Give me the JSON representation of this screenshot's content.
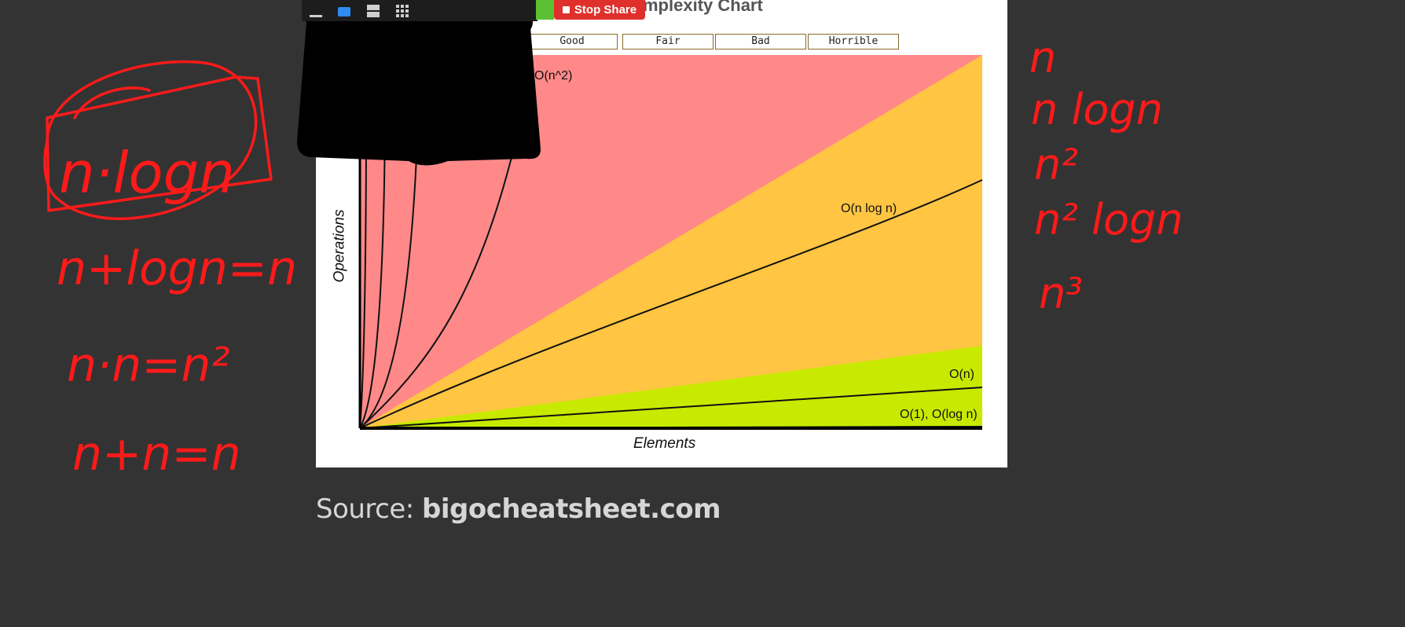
{
  "chart_title_fragment": "mplexity Chart",
  "legend": [
    {
      "label": "Good",
      "color": "#c8ea00"
    },
    {
      "label": "Fair",
      "color": "#ffff00"
    },
    {
      "label": "Bad",
      "color": "#ffc543"
    },
    {
      "label": "Horrible",
      "color": "#ff8989"
    }
  ],
  "chart_data": {
    "type": "line",
    "xlabel": "Elements",
    "ylabel": "Operations",
    "grid": false,
    "regions": [
      {
        "label": "Horrible",
        "color": "#ff8989"
      },
      {
        "label": "Bad",
        "color": "#ffc543"
      },
      {
        "label": "Good",
        "color": "#c8ea00"
      }
    ],
    "series": [
      {
        "name": "O(1), O(log n)"
      },
      {
        "name": "O(n)"
      },
      {
        "name": "O(n log n)"
      },
      {
        "name": "O(n^2)"
      },
      {
        "name": ""
      },
      {
        "name": ""
      },
      {
        "name": ""
      }
    ]
  },
  "meeting_controls": {
    "stop_share_label": "Stop Share",
    "icons": [
      "minimize-icon",
      "window-icon",
      "layout-icon",
      "grid-icon"
    ]
  },
  "handwriting": {
    "left": [
      "n·logn",
      "n+logn=n",
      "n·n=n²",
      "n+n=n"
    ],
    "right": [
      "n",
      "n logn",
      "n²",
      "n² logn",
      "n³"
    ],
    "color": "#ff1a1a"
  },
  "source": {
    "prefix": "Source: ",
    "site": "bigocheatsheet.com"
  }
}
